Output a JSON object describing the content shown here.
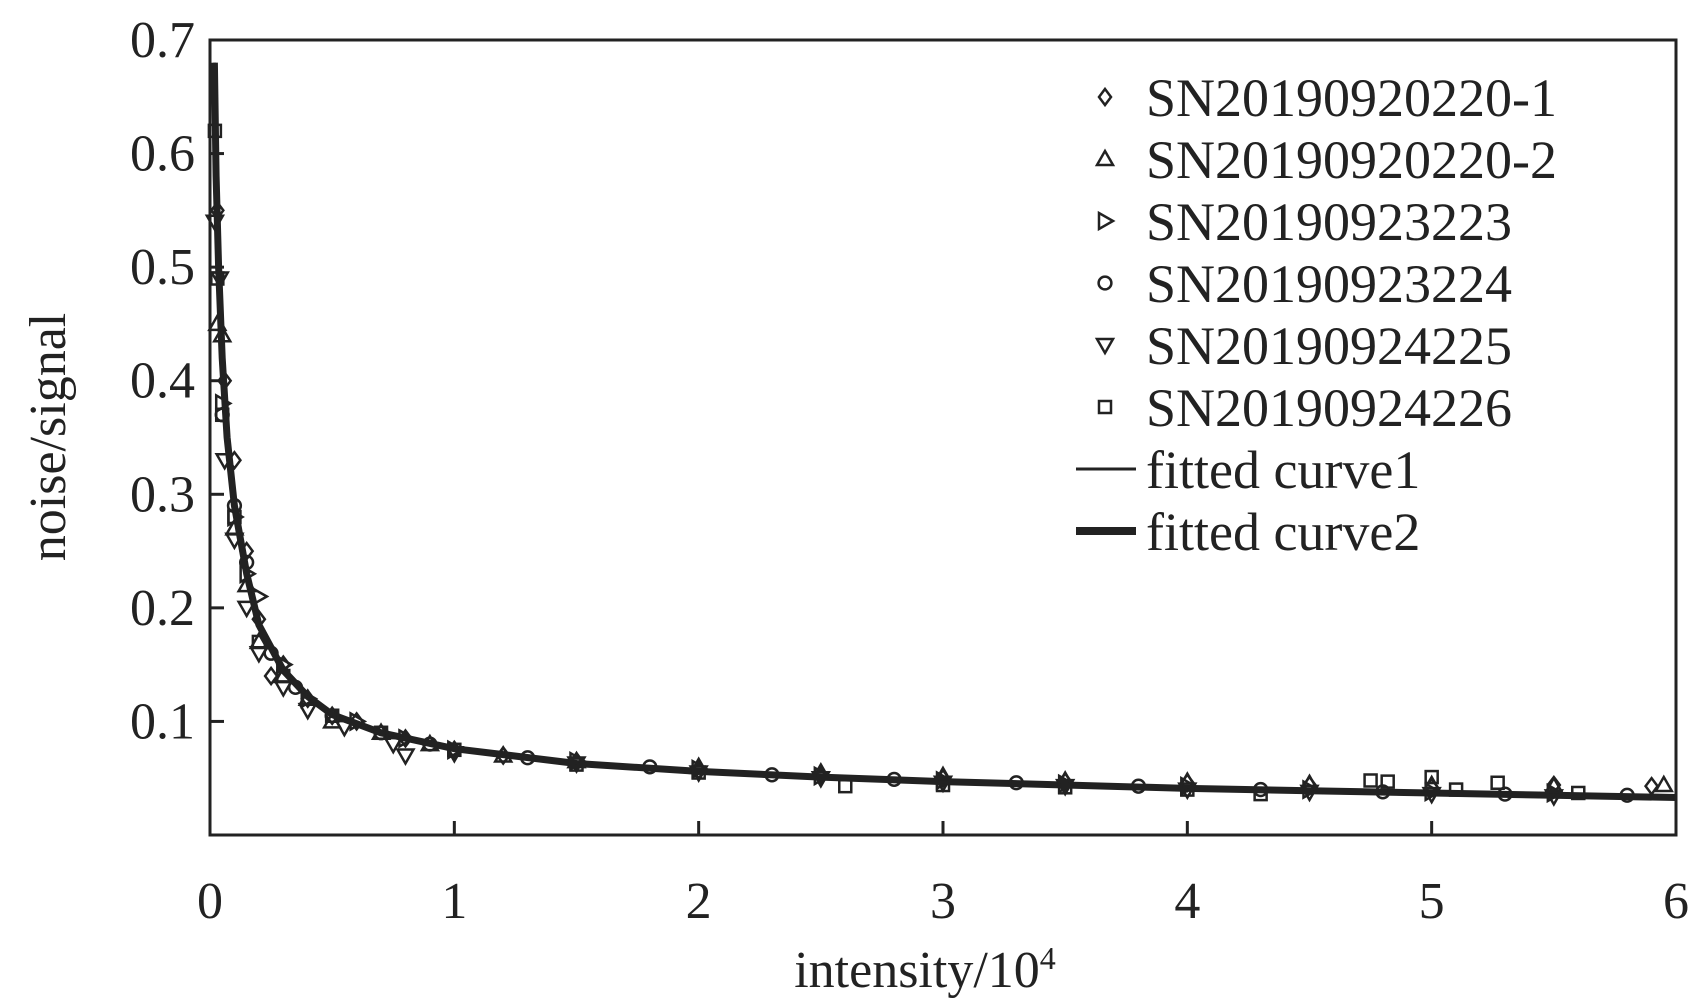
{
  "chart_data": {
    "type": "scatter",
    "xlabel": "intensity/10",
    "xlabel_sup": "4",
    "ylabel": "noise/signal",
    "xlim": [
      0,
      6
    ],
    "ylim": [
      0,
      0.7
    ],
    "x_ticks": [
      "0",
      "1",
      "2",
      "3",
      "4",
      "5",
      "6"
    ],
    "y_ticks": [
      "0.1",
      "0.2",
      "0.3",
      "0.4",
      "0.5",
      "0.6",
      "0.7"
    ],
    "grid": false,
    "legend_position": "top-right",
    "series": [
      {
        "name": "SN20190920220-1",
        "marker": "diamond",
        "x": [
          0.03,
          0.06,
          0.1,
          0.15,
          0.2,
          0.25,
          0.3,
          0.4,
          0.5,
          0.6,
          0.8,
          1.0,
          1.2,
          1.5,
          2.0,
          2.5,
          3.0,
          3.5,
          4.0,
          4.5,
          5.0,
          5.5,
          5.9
        ],
        "y": [
          0.55,
          0.4,
          0.33,
          0.25,
          0.19,
          0.14,
          0.15,
          0.12,
          0.105,
          0.1,
          0.085,
          0.075,
          0.07,
          0.065,
          0.057,
          0.052,
          0.05,
          0.047,
          0.046,
          0.044,
          0.042,
          0.044,
          0.043
        ]
      },
      {
        "name": "SN20190920220-2",
        "marker": "triangle-up",
        "x": [
          0.03,
          0.05,
          0.1,
          0.15,
          0.2,
          0.3,
          0.4,
          0.5,
          0.7,
          0.9,
          1.2,
          1.5,
          2.0,
          2.5,
          3.0,
          3.5,
          4.0,
          4.5,
          5.0,
          5.5,
          5.95
        ],
        "y": [
          0.45,
          0.44,
          0.27,
          0.22,
          0.17,
          0.14,
          0.12,
          0.1,
          0.09,
          0.08,
          0.07,
          0.065,
          0.06,
          0.055,
          0.052,
          0.048,
          0.047,
          0.045,
          0.044,
          0.043,
          0.044
        ]
      },
      {
        "name": "SN20190923223",
        "marker": "triangle-right",
        "x": [
          0.05,
          0.1,
          0.15,
          0.2,
          0.3,
          0.4,
          0.6,
          0.8,
          1.0,
          1.5,
          2.0,
          2.5,
          3.0,
          3.5,
          4.0,
          4.5,
          5.0,
          5.5
        ],
        "y": [
          0.38,
          0.28,
          0.23,
          0.21,
          0.15,
          0.12,
          0.1,
          0.085,
          0.075,
          0.065,
          0.058,
          0.052,
          0.048,
          0.045,
          0.043,
          0.04,
          0.038,
          0.037
        ]
      },
      {
        "name": "SN20190923224",
        "marker": "circle",
        "x": [
          0.05,
          0.1,
          0.15,
          0.25,
          0.35,
          0.5,
          0.7,
          0.9,
          1.3,
          1.8,
          2.3,
          2.8,
          3.3,
          3.8,
          4.3,
          4.8,
          5.3,
          5.8
        ],
        "y": [
          0.37,
          0.29,
          0.24,
          0.16,
          0.13,
          0.105,
          0.09,
          0.08,
          0.068,
          0.06,
          0.053,
          0.049,
          0.046,
          0.043,
          0.04,
          0.038,
          0.036,
          0.035
        ]
      },
      {
        "name": "SN20190924225",
        "marker": "triangle-down",
        "x": [
          0.02,
          0.04,
          0.06,
          0.1,
          0.15,
          0.2,
          0.3,
          0.4,
          0.55,
          0.75,
          0.8,
          1.0,
          1.5,
          2.0,
          2.5,
          3.0,
          3.5,
          4.0,
          4.5,
          5.0,
          5.5
        ],
        "y": [
          0.54,
          0.49,
          0.33,
          0.26,
          0.2,
          0.16,
          0.13,
          0.11,
          0.095,
          0.08,
          0.07,
          0.072,
          0.063,
          0.055,
          0.05,
          0.046,
          0.043,
          0.04,
          0.038,
          0.036,
          0.034
        ]
      },
      {
        "name": "SN20190924226",
        "marker": "square",
        "x": [
          0.02,
          0.03,
          0.05,
          0.1,
          0.2,
          0.3,
          0.5,
          0.7,
          1.0,
          1.5,
          2.0,
          2.6,
          3.0,
          3.5,
          4.0,
          4.3,
          4.75,
          4.82,
          5.0,
          5.1,
          5.27,
          5.6
        ],
        "y": [
          0.62,
          0.49,
          0.37,
          0.28,
          0.17,
          0.14,
          0.105,
          0.09,
          0.075,
          0.062,
          0.055,
          0.043,
          0.044,
          0.042,
          0.04,
          0.036,
          0.048,
          0.047,
          0.051,
          0.04,
          0.046,
          0.037
        ]
      }
    ],
    "fitted_curves": [
      {
        "name": "fitted curve1",
        "style": "thin"
      },
      {
        "name": "fitted curve2",
        "style": "thick"
      }
    ]
  }
}
